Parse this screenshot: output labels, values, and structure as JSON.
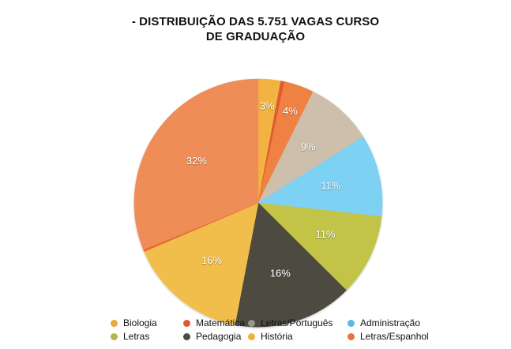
{
  "chart_data": {
    "type": "pie",
    "title": {
      "line1": "- DISTRIBUIÇÃO DAS 5.751 VAGAS CURSO",
      "line2": "DE GRADUAÇÃO"
    },
    "slices": [
      {
        "label": "História",
        "value": 3,
        "display": "3%",
        "color": "#f2b340"
      },
      {
        "label": "Matemática",
        "value": 0.5,
        "display": "",
        "color": "#dd5a33"
      },
      {
        "label": "Letras/Espanhol",
        "value": 4,
        "display": "4%",
        "color": "#ef8142"
      },
      {
        "label": "Letras/Português",
        "value": 9,
        "display": "9%",
        "color": "#cdbfac"
      },
      {
        "label": "Administração",
        "value": 11,
        "display": "11%",
        "color": "#7dd1f2"
      },
      {
        "label": "Letras",
        "value": 11,
        "display": "11%",
        "color": "#c2c446"
      },
      {
        "label": "Pedagogia",
        "value": 16,
        "display": "16%",
        "color": "#4d4b40"
      },
      {
        "label": "Biologia",
        "value": 16,
        "display": "16%",
        "color": "#f2be4c"
      },
      {
        "label": "Letras/Espanhol",
        "value": 0.3,
        "display": "",
        "color": "#e76c35"
      },
      {
        "label": "Letras/Espanhol",
        "value": 32,
        "display": "32%",
        "color": "#ef8d58"
      }
    ],
    "legend": [
      {
        "label": "Biologia",
        "color": "#e8a93a"
      },
      {
        "label": "Matemática",
        "color": "#dd5a33"
      },
      {
        "label": "Letras/Português",
        "color": "#9a968c"
      },
      {
        "label": "Administração",
        "color": "#5fb6e3"
      },
      {
        "label": "Letras",
        "color": "#b3b54a"
      },
      {
        "label": "Pedagogia",
        "color": "#4d4b40"
      },
      {
        "label": "História",
        "color": "#f0b23c"
      },
      {
        "label": "Letras/Espanhol",
        "color": "#e97339"
      }
    ],
    "legend_position": "bottom"
  }
}
